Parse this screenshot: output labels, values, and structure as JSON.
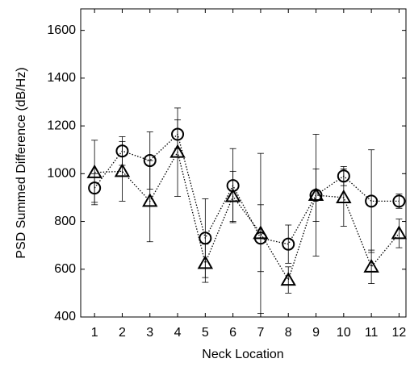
{
  "chart_data": {
    "type": "line",
    "x_label": "Neck Location",
    "y_label": "PSD Summed Difference (dB/Hz)",
    "x": [
      1,
      2,
      3,
      4,
      5,
      6,
      7,
      8,
      9,
      10,
      11,
      12
    ],
    "xlim": [
      0.5,
      12.25
    ],
    "xticks": [
      1,
      2,
      3,
      4,
      5,
      6,
      7,
      8,
      9,
      10,
      11,
      12
    ],
    "ylim": [
      400,
      1690
    ],
    "yticks": [
      400,
      600,
      800,
      1000,
      1200,
      1400,
      1600
    ],
    "grid": false,
    "series": [
      {
        "marker": "circle",
        "color": "#000000",
        "line_style": "dotted",
        "values": [
          940,
          1095,
          1055,
          1165,
          730,
          950,
          730,
          705,
          910,
          990,
          885,
          885
        ],
        "errors": [
          60,
          60,
          120,
          60,
          165,
          155,
          140,
          80,
          255,
          40,
          215,
          30
        ]
      },
      {
        "marker": "triangle",
        "color": "#000000",
        "line_style": "dotted",
        "values": [
          1005,
          1010,
          885,
          1090,
          625,
          905,
          750,
          555,
          910,
          900,
          610,
          750
        ],
        "errors": [
          135,
          125,
          170,
          185,
          80,
          105,
          335,
          55,
          110,
          120,
          70,
          60
        ]
      }
    ]
  }
}
